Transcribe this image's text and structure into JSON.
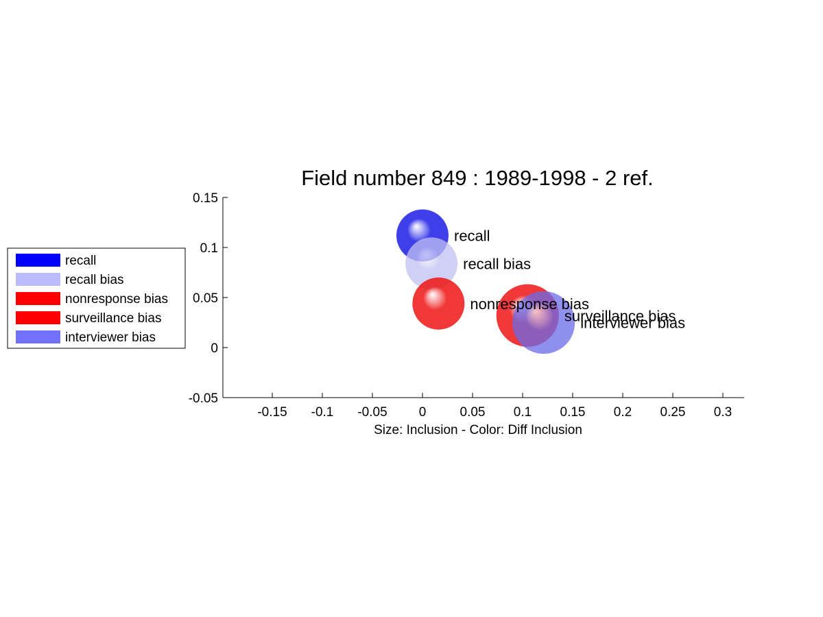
{
  "chart_data": {
    "type": "scatter",
    "title": "Field number 849 : 1989-1998  - 2 ref.",
    "xlabel": "Size: Inclusion - Color: Diff Inclusion",
    "ylabel": "",
    "xlim": [
      -0.2,
      0.32
    ],
    "ylim": [
      -0.05,
      0.15
    ],
    "xticks": [
      -0.15,
      -0.1,
      -0.05,
      0,
      0.05,
      0.1,
      0.15,
      0.2,
      0.25,
      0.3
    ],
    "xtick_labels": [
      "-0.15",
      "-0.1",
      "-0.05",
      "0",
      "0.05",
      "0.1",
      "0.15",
      "0.2",
      "0.25",
      "0.3"
    ],
    "yticks": [
      -0.05,
      0,
      0.05,
      0.1,
      0.15
    ],
    "ytick_labels": [
      "-0.05",
      "0",
      "0.05",
      "0.1",
      "0.15"
    ],
    "grid": false,
    "legend_placement": "left-outside",
    "points": [
      {
        "label": "recall",
        "x": 0.0,
        "y": 0.112,
        "size": 1.0,
        "color": "#2a2ae8",
        "opacity": 0.9
      },
      {
        "label": "recall bias",
        "x": 0.009,
        "y": 0.084,
        "size": 1.0,
        "color": "#bfc0f2",
        "opacity": 0.75
      },
      {
        "label": "nonresponse bias",
        "x": 0.016,
        "y": 0.044,
        "size": 1.0,
        "color": "#ee1515",
        "opacity": 0.85
      },
      {
        "label": "surveillance bias",
        "x": 0.105,
        "y": 0.032,
        "size": 1.2,
        "color": "#ee1515",
        "opacity": 0.85
      },
      {
        "label": "interviewer bias",
        "x": 0.121,
        "y": 0.025,
        "size": 1.2,
        "color": "#6a6ae8",
        "opacity": 0.75
      }
    ],
    "legend": [
      {
        "label": "recall",
        "color": "#0000ff"
      },
      {
        "label": "recall bias",
        "color": "#babaff"
      },
      {
        "label": "nonresponse bias",
        "color": "#ff0000"
      },
      {
        "label": "surveillance bias",
        "color": "#ff0000"
      },
      {
        "label": "interviewer bias",
        "color": "#7272ff"
      }
    ]
  }
}
